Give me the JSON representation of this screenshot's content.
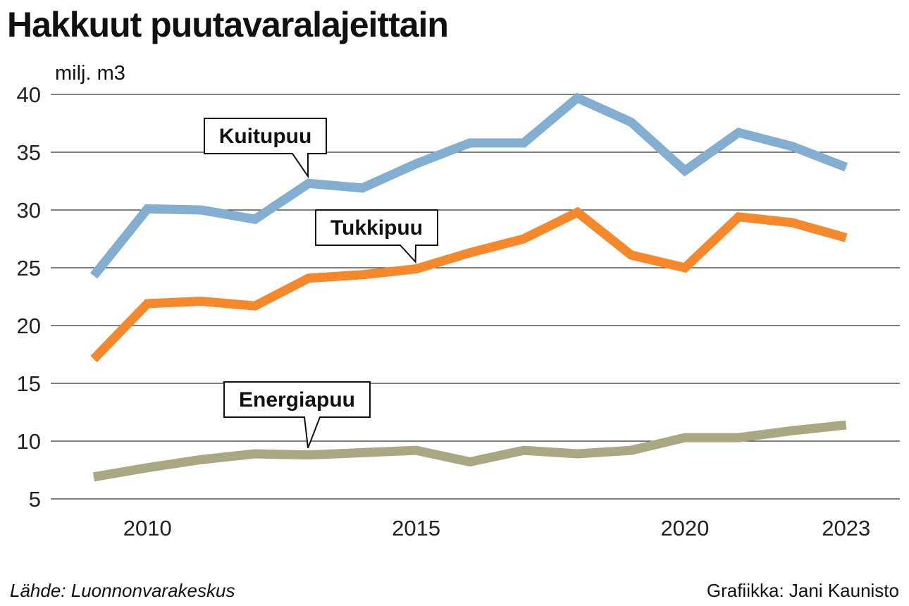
{
  "header": {
    "title": "Hakkuut puutavaralajeittain",
    "unit": "milj. m3"
  },
  "footer": {
    "source": "Lähde: Luonnonvarakeskus",
    "credit": "Grafiikka: Jani Kaunisto"
  },
  "chart_data": {
    "type": "line",
    "title": "Hakkuut puutavaralajeittain",
    "ylabel": "milj. m3",
    "xlabel": "",
    "ylim": [
      5,
      40
    ],
    "xlim": [
      2008.2,
      2024.0
    ],
    "y_ticks": [
      "40",
      "35",
      "30",
      "25",
      "20",
      "15",
      "10",
      "5"
    ],
    "x_ticks": [
      "2010",
      "2015",
      "2020",
      "2023"
    ],
    "grid": true,
    "x": [
      2009,
      2010,
      2011,
      2012,
      2013,
      2014,
      2015,
      2016,
      2017,
      2018,
      2019,
      2020,
      2021,
      2022,
      2023
    ],
    "series": [
      {
        "name": "Kuitupuu",
        "color": "#82aed2",
        "values": [
          24.3,
          30.1,
          30.0,
          29.2,
          32.3,
          31.9,
          34.0,
          35.8,
          35.8,
          39.7,
          37.6,
          33.4,
          36.7,
          35.5,
          33.7
        ]
      },
      {
        "name": "Tukkipuu",
        "color": "#f6882c",
        "values": [
          17.1,
          21.9,
          22.1,
          21.7,
          24.1,
          24.4,
          24.9,
          26.3,
          27.5,
          29.8,
          26.1,
          25.0,
          29.4,
          28.9,
          27.6
        ]
      },
      {
        "name": "Energiapuu",
        "color": "#a9a883",
        "values": [
          6.9,
          7.7,
          8.4,
          8.9,
          8.8,
          9.0,
          9.2,
          8.2,
          9.2,
          8.9,
          9.2,
          10.3,
          10.3,
          10.9,
          11.4
        ]
      }
    ],
    "callouts": [
      {
        "label": "Kuitupuu",
        "points_to_year": 2013
      },
      {
        "label": "Tukkipuu",
        "points_to_year": 2015
      },
      {
        "label": "Energiapuu",
        "points_to_year": 2013
      }
    ]
  }
}
